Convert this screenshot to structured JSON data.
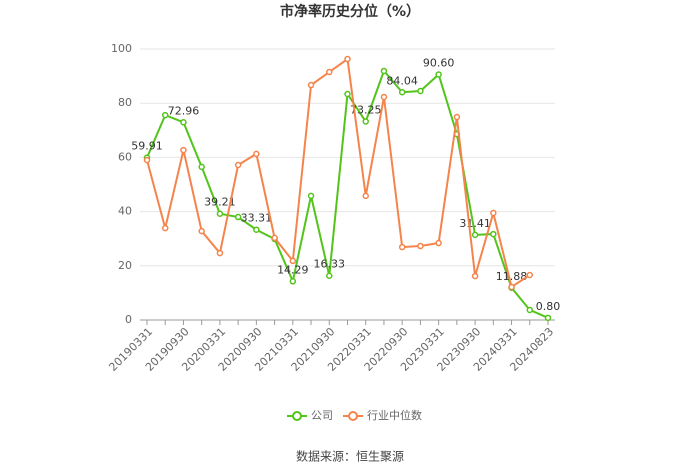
{
  "chart_data": {
    "type": "line",
    "title": "市净率历史分位（%）",
    "categories": [
      "20190331",
      null,
      "20190930",
      null,
      "20200331",
      null,
      "20200930",
      null,
      "20210331",
      null,
      "20210930",
      null,
      "20220331",
      null,
      "20220930",
      null,
      "20230331",
      null,
      "20230930",
      null,
      "20240331",
      null,
      "20240823"
    ],
    "series": [
      {
        "name": "公司",
        "color": "#52c41a",
        "values": [
          59.91,
          75.6,
          72.96,
          56.5,
          39.21,
          38.0,
          33.31,
          29.9,
          14.29,
          45.8,
          16.33,
          83.4,
          73.25,
          91.9,
          84.04,
          84.5,
          90.6,
          68.6,
          31.41,
          31.7,
          11.88,
          3.7,
          0.8
        ],
        "value_labels": [
          "59.91",
          null,
          "72.96",
          null,
          "39.21",
          null,
          "33.31",
          null,
          "14.29",
          null,
          "16.33",
          null,
          "73.25",
          null,
          "84.04",
          null,
          "90.60",
          null,
          "31.41",
          null,
          "11.88",
          null,
          "0.80"
        ]
      },
      {
        "name": "行业中位数",
        "color": "#f5844c",
        "values": [
          59.0,
          33.9,
          62.7,
          32.8,
          24.7,
          57.2,
          61.3,
          30.3,
          21.8,
          86.7,
          91.5,
          96.3,
          45.8,
          82.3,
          26.9,
          27.3,
          28.4,
          74.9,
          16.2,
          39.5,
          12.2,
          16.6,
          null
        ]
      }
    ],
    "ylim": [
      0,
      100
    ],
    "yticks": [
      0,
      20,
      40,
      60,
      80,
      100
    ],
    "grid": true,
    "legend": "bottom",
    "source": "数据来源：恒生聚源"
  }
}
